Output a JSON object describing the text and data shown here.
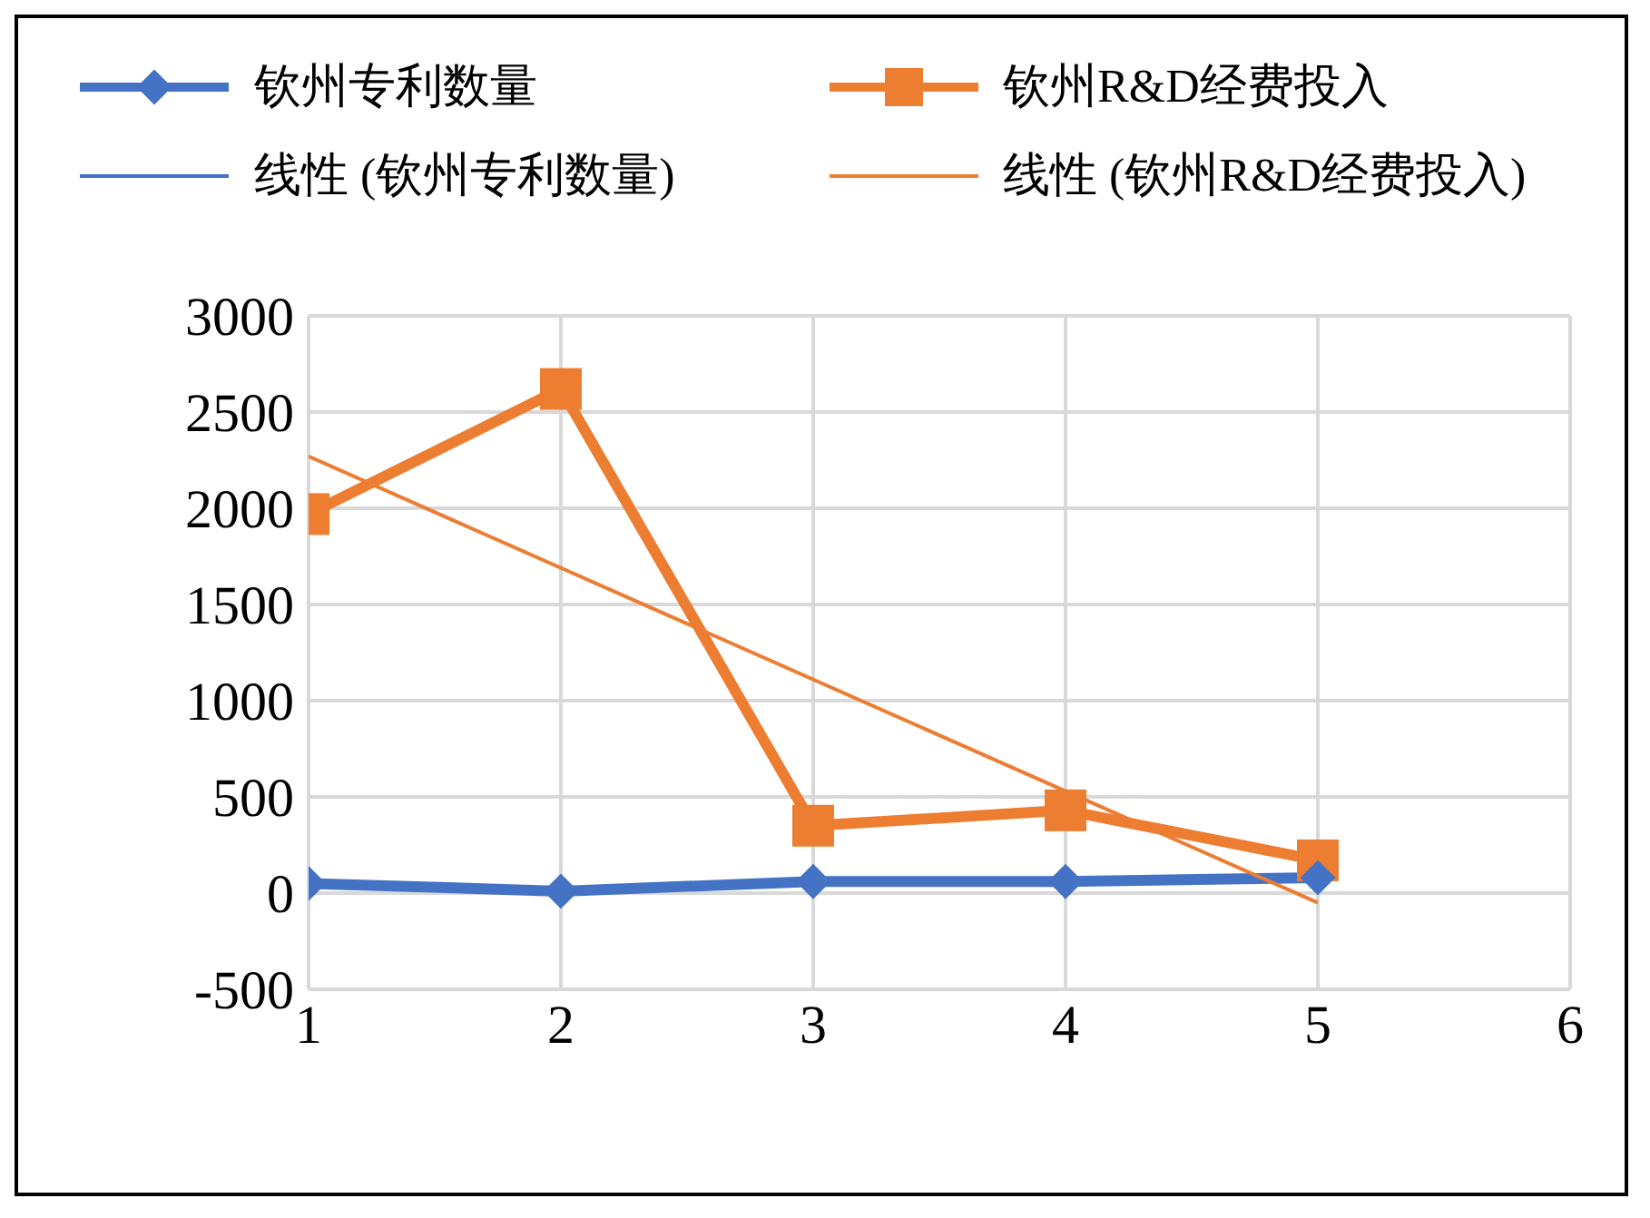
{
  "chart_data": {
    "type": "line",
    "x": [
      1,
      2,
      3,
      4,
      5
    ],
    "xlim": [
      1,
      6
    ],
    "xticks": [
      1,
      2,
      3,
      4,
      5,
      6
    ],
    "ylim": [
      -500,
      3000
    ],
    "yticks": [
      -500,
      0,
      500,
      1000,
      1500,
      2000,
      2500,
      3000
    ],
    "grid": true,
    "legend": "top",
    "series": [
      {
        "name": "钦州专利数量",
        "color": "#4472c4",
        "marker": "diamond",
        "values": [
          50,
          10,
          60,
          60,
          80
        ]
      },
      {
        "name": "钦州R&D经费投入",
        "color": "#ed7d31",
        "marker": "square",
        "values": [
          1970,
          2620,
          350,
          430,
          170
        ]
      },
      {
        "name": "线性 (钦州专利数量)",
        "color": "#4472c4",
        "marker": "none",
        "values": [
          null,
          null,
          null,
          null,
          null
        ]
      },
      {
        "name": "线性 (钦州R&D经费投入)",
        "color": "#ed7d31",
        "marker": "none",
        "x": [
          1,
          5
        ],
        "values": [
          2270,
          -50
        ]
      }
    ]
  }
}
